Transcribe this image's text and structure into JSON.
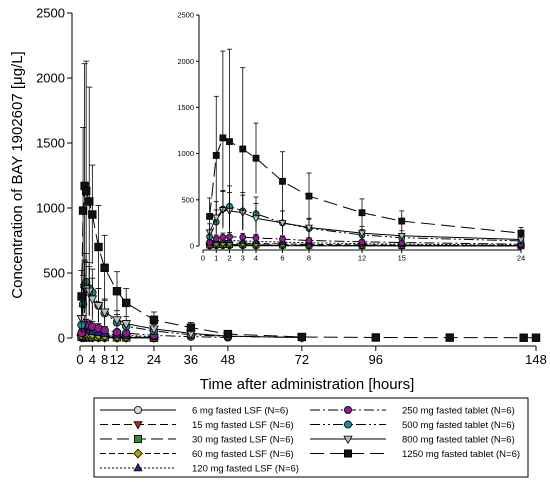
{
  "chart_data": [
    {
      "type": "line",
      "xlabel": "Time after administration [hours]",
      "ylabel": "Concentration of BAY 1902607 [μg/L]",
      "xlim": [
        0,
        148
      ],
      "ylim": [
        0,
        2500
      ],
      "xticks": [
        0,
        4,
        8,
        12,
        24,
        36,
        48,
        72,
        96,
        148
      ],
      "yticks": [
        0,
        500,
        1000,
        1500,
        2000,
        2500
      ],
      "error_bars": true,
      "series": [
        {
          "name": "6 mg fasted LSF (N=6)",
          "color": "#d9d9d9",
          "marker": "circle",
          "dash": "",
          "x": [
            0.5,
            1,
            1.5,
            2,
            3,
            4,
            6,
            8,
            12,
            15,
            24
          ],
          "y": [
            2,
            3,
            3,
            3,
            3,
            2,
            2,
            2,
            1,
            1,
            0.5
          ],
          "err": [
            1,
            1,
            1,
            1,
            1,
            1,
            1,
            1,
            1,
            1,
            0.5
          ]
        },
        {
          "name": "15 mg fasted LSF (N=6)",
          "color": "#a52a2a",
          "marker": "triangle-down",
          "dash": "8,4",
          "x": [
            0.5,
            1,
            1.5,
            2,
            3,
            4,
            6,
            8,
            12,
            15,
            24
          ],
          "y": [
            5,
            8,
            8,
            8,
            7,
            6,
            5,
            4,
            3,
            2,
            1
          ],
          "err": [
            3,
            4,
            4,
            4,
            4,
            3,
            3,
            2,
            2,
            1,
            1
          ]
        },
        {
          "name": "30 mg fasted LSF (N=6)",
          "color": "#2e8b2e",
          "marker": "square",
          "dash": "12,5",
          "x": [
            0.5,
            1,
            1.5,
            2,
            3,
            4,
            6,
            8,
            12,
            15,
            24
          ],
          "y": [
            10,
            16,
            16,
            15,
            14,
            12,
            10,
            8,
            6,
            5,
            2
          ],
          "err": [
            6,
            8,
            8,
            8,
            7,
            6,
            5,
            4,
            3,
            3,
            1
          ]
        },
        {
          "name": "60 mg fasted LSF (N=6)",
          "color": "#b8a000",
          "marker": "diamond",
          "dash": "6,3",
          "x": [
            0.5,
            1,
            1.5,
            2,
            3,
            4,
            6,
            8,
            12,
            15,
            24
          ],
          "y": [
            20,
            32,
            33,
            32,
            30,
            27,
            22,
            18,
            12,
            10,
            5
          ],
          "err": [
            10,
            14,
            14,
            13,
            12,
            11,
            9,
            7,
            5,
            4,
            2
          ]
        },
        {
          "name": "120 mg fasted LSF (N=6)",
          "color": "#1f2a8c",
          "marker": "triangle-up",
          "dash": "2,2",
          "x": [
            0.5,
            1,
            1.5,
            2,
            3,
            4,
            6,
            8,
            12,
            15,
            24
          ],
          "y": [
            40,
            60,
            62,
            60,
            55,
            50,
            42,
            35,
            25,
            20,
            10
          ],
          "err": [
            20,
            28,
            28,
            26,
            24,
            22,
            18,
            15,
            11,
            9,
            5
          ]
        },
        {
          "name": "250 mg fasted tablet (N=6)",
          "color": "#8e1a8e",
          "marker": "circle",
          "dash": "10,3,2,3",
          "x": [
            0.5,
            1,
            1.5,
            2,
            3,
            4,
            6,
            8,
            12,
            15,
            24,
            36,
            48
          ],
          "y": [
            40,
            80,
            95,
            100,
            95,
            88,
            75,
            60,
            45,
            38,
            20,
            10,
            5
          ],
          "err": [
            25,
            40,
            45,
            45,
            42,
            40,
            35,
            28,
            20,
            18,
            10,
            5,
            3
          ]
        },
        {
          "name": "500 mg fasted tablet (N=6)",
          "color": "#1f8b8b",
          "marker": "circle",
          "dash": "10,3,2,3,2,3",
          "x": [
            0.5,
            1,
            1.5,
            2,
            3,
            4,
            6,
            8,
            12,
            15,
            24,
            36,
            48,
            72
          ],
          "y": [
            100,
            260,
            400,
            430,
            380,
            350,
            250,
            190,
            120,
            90,
            55,
            25,
            12,
            3
          ],
          "err": [
            60,
            130,
            200,
            220,
            200,
            180,
            130,
            100,
            60,
            45,
            30,
            15,
            8,
            2
          ]
        },
        {
          "name": "800 mg fasted tablet (N=6)",
          "color": "#bfbfbf",
          "marker": "triangle-down",
          "dash": "",
          "x": [
            0.5,
            1,
            1.5,
            2,
            3,
            4,
            6,
            8,
            12,
            15,
            24,
            36,
            48,
            72
          ],
          "y": [
            150,
            310,
            390,
            380,
            360,
            300,
            250,
            200,
            140,
            110,
            70,
            35,
            15,
            4
          ],
          "err": [
            90,
            170,
            200,
            200,
            190,
            160,
            130,
            100,
            70,
            55,
            35,
            18,
            9,
            3
          ]
        },
        {
          "name": "1250 mg fasted tablet (N=6)",
          "color": "#111111",
          "marker": "square",
          "dash": "14,6",
          "x": [
            0.5,
            1,
            1.5,
            2,
            3,
            4,
            6,
            8,
            12,
            15,
            24,
            36,
            48,
            72,
            96,
            120,
            144,
            148
          ],
          "y": [
            320,
            980,
            1170,
            1130,
            1050,
            950,
            700,
            540,
            360,
            270,
            140,
            80,
            30,
            8,
            4,
            3,
            2,
            2
          ],
          "err": [
            200,
            640,
            940,
            1000,
            880,
            380,
            320,
            250,
            150,
            110,
            60,
            40,
            20,
            6,
            3,
            2,
            2,
            2
          ]
        }
      ]
    },
    {
      "type": "line",
      "inset": true,
      "xlim": [
        0,
        24
      ],
      "ylim": [
        0,
        2500
      ],
      "xticks": [
        0,
        1,
        2,
        3,
        4,
        6,
        8,
        12,
        15,
        24
      ],
      "yticks": [
        0,
        500,
        1000,
        1500,
        2000,
        2500
      ],
      "same_series_as_main": true
    }
  ]
}
